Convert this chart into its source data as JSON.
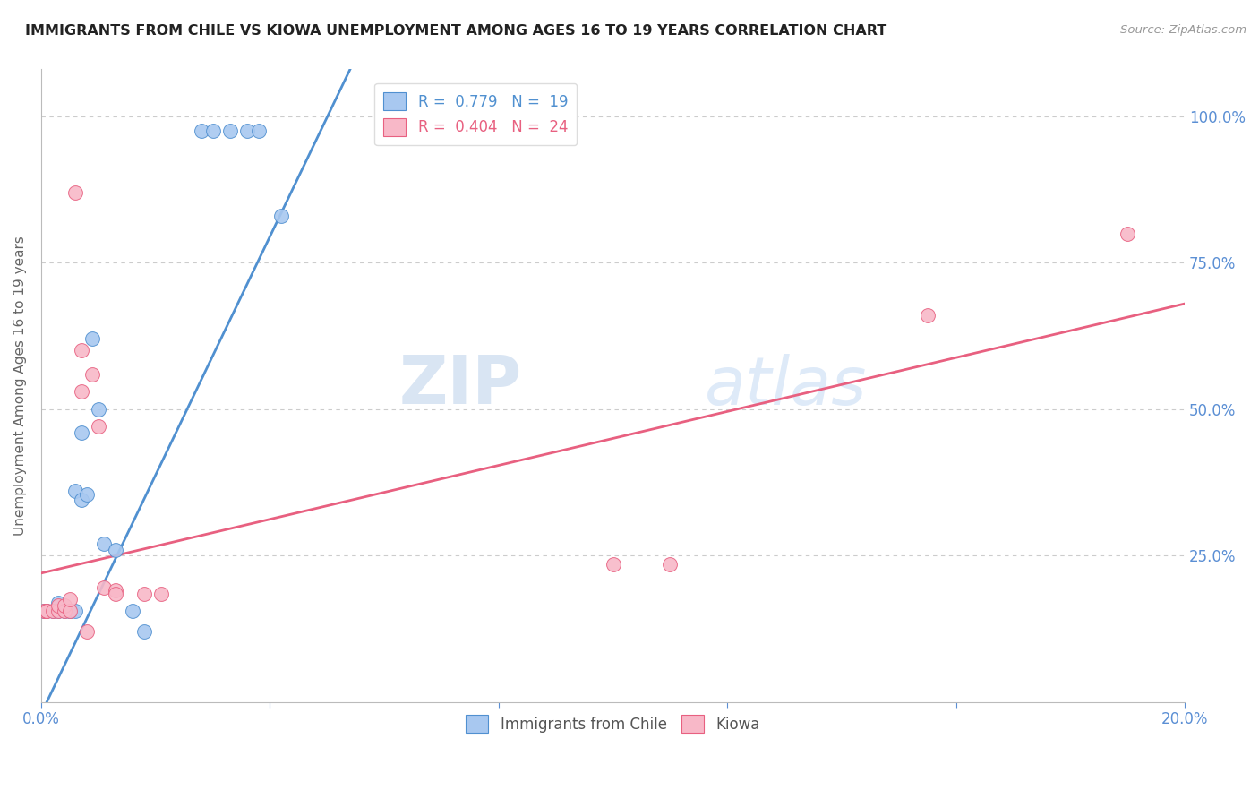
{
  "title": "IMMIGRANTS FROM CHILE VS KIOWA UNEMPLOYMENT AMONG AGES 16 TO 19 YEARS CORRELATION CHART",
  "source": "Source: ZipAtlas.com",
  "ylabel": "Unemployment Among Ages 16 to 19 years",
  "x_min": 0.0,
  "x_max": 0.2,
  "y_min": 0.0,
  "y_max": 1.08,
  "x_ticks": [
    0.0,
    0.04,
    0.08,
    0.12,
    0.16,
    0.2
  ],
  "x_tick_labels": [
    "0.0%",
    "",
    "",
    "",
    "",
    "20.0%"
  ],
  "y_ticks": [
    0.0,
    0.25,
    0.5,
    0.75,
    1.0
  ],
  "y_tick_labels": [
    "",
    "25.0%",
    "50.0%",
    "75.0%",
    "100.0%"
  ],
  "blue_color": "#A8C8F0",
  "pink_color": "#F8B8C8",
  "blue_line_color": "#5090D0",
  "pink_line_color": "#E86080",
  "axis_color": "#BBBBBB",
  "grid_color": "#CCCCCC",
  "title_color": "#222222",
  "tick_label_color": "#5B8FD4",
  "watermark_zip_color": "#B8CCE8",
  "watermark_atlas_color": "#C8DCF4",
  "blue_scatter": [
    [
      0.0005,
      0.155
    ],
    [
      0.001,
      0.155
    ],
    [
      0.002,
      0.155
    ],
    [
      0.003,
      0.155
    ],
    [
      0.003,
      0.17
    ],
    [
      0.004,
      0.155
    ],
    [
      0.005,
      0.155
    ],
    [
      0.005,
      0.155
    ],
    [
      0.006,
      0.155
    ],
    [
      0.006,
      0.36
    ],
    [
      0.007,
      0.345
    ],
    [
      0.007,
      0.46
    ],
    [
      0.008,
      0.355
    ],
    [
      0.009,
      0.62
    ],
    [
      0.01,
      0.5
    ],
    [
      0.011,
      0.27
    ],
    [
      0.013,
      0.26
    ],
    [
      0.016,
      0.155
    ],
    [
      0.018,
      0.12
    ],
    [
      0.028,
      0.975
    ],
    [
      0.03,
      0.975
    ],
    [
      0.033,
      0.975
    ],
    [
      0.036,
      0.975
    ],
    [
      0.038,
      0.975
    ],
    [
      0.042,
      0.83
    ]
  ],
  "pink_scatter": [
    [
      0.0005,
      0.155
    ],
    [
      0.001,
      0.155
    ],
    [
      0.001,
      0.155
    ],
    [
      0.002,
      0.155
    ],
    [
      0.003,
      0.155
    ],
    [
      0.003,
      0.165
    ],
    [
      0.004,
      0.155
    ],
    [
      0.004,
      0.165
    ],
    [
      0.005,
      0.155
    ],
    [
      0.005,
      0.175
    ],
    [
      0.006,
      0.87
    ],
    [
      0.007,
      0.53
    ],
    [
      0.007,
      0.6
    ],
    [
      0.008,
      0.12
    ],
    [
      0.009,
      0.56
    ],
    [
      0.01,
      0.47
    ],
    [
      0.011,
      0.195
    ],
    [
      0.013,
      0.19
    ],
    [
      0.013,
      0.185
    ],
    [
      0.018,
      0.185
    ],
    [
      0.021,
      0.185
    ],
    [
      0.1,
      0.235
    ],
    [
      0.11,
      0.235
    ],
    [
      0.155,
      0.66
    ],
    [
      0.19,
      0.8
    ]
  ],
  "blue_line_x": [
    0.0,
    0.055
  ],
  "blue_line_y": [
    -0.02,
    1.1
  ],
  "pink_line_x": [
    0.0,
    0.2
  ],
  "pink_line_y": [
    0.22,
    0.68
  ]
}
